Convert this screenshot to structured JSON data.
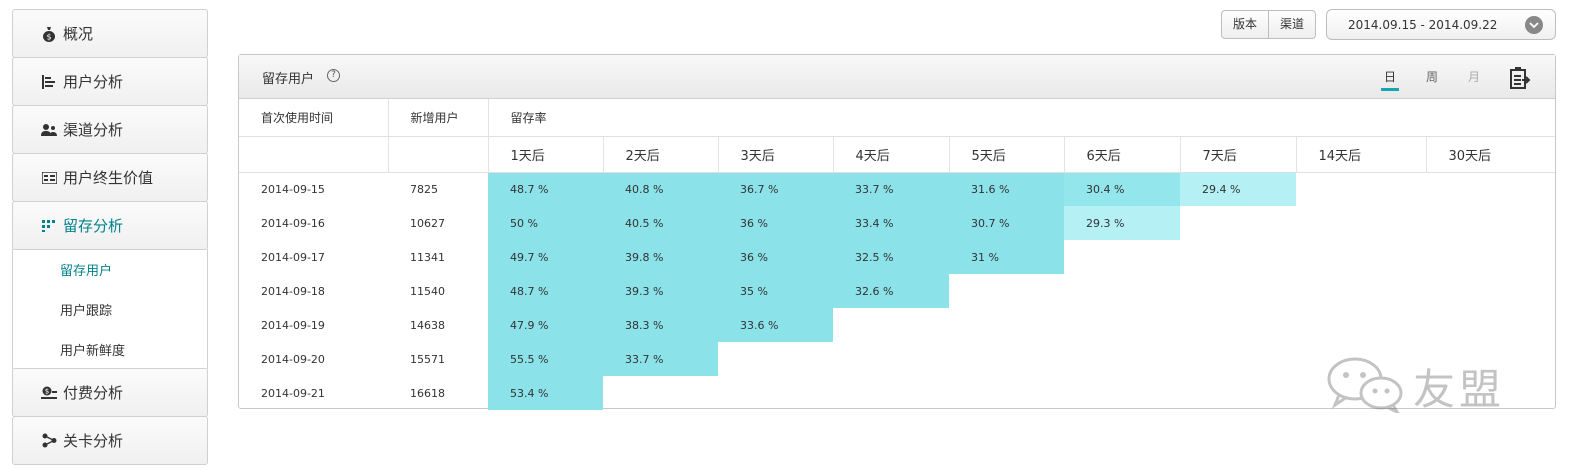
{
  "sidebar": {
    "items": [
      {
        "label": "概况",
        "icon": "money-bag-icon"
      },
      {
        "label": "用户分析",
        "icon": "bar-chart-icon"
      },
      {
        "label": "渠道分析",
        "icon": "users-icon"
      },
      {
        "label": "用户终生价值",
        "icon": "grid-icon"
      },
      {
        "label": "留存分析",
        "icon": "retention-icon"
      },
      {
        "label": "付费分析",
        "icon": "coins-icon"
      },
      {
        "label": "关卡分析",
        "icon": "flow-icon"
      }
    ],
    "sub_items": [
      "留存用户",
      "用户跟踪",
      "用户新鲜度"
    ]
  },
  "toolbar": {
    "version_label": "版本",
    "channel_label": "渠道",
    "date_range": "2014.09.15 - 2014.09.22"
  },
  "panel": {
    "title": "留存用户",
    "help_icon": "?",
    "periods": [
      "日",
      "周",
      "月"
    ]
  },
  "table": {
    "col_first_use": "首次使用时间",
    "col_new_users": "新增用户",
    "col_retention": "留存率",
    "day_headers": [
      "1天后",
      "2天后",
      "3天后",
      "4天后",
      "5天后",
      "6天后",
      "7天后",
      "14天后",
      "30天后"
    ],
    "rows": [
      {
        "date": "2014-09-15",
        "users": "7825",
        "rates": [
          "48.7 %",
          "40.8 %",
          "36.7 %",
          "33.7 %",
          "31.6 %",
          "30.4 %",
          "29.4 %",
          "",
          ""
        ]
      },
      {
        "date": "2014-09-16",
        "users": "10627",
        "rates": [
          "50 %",
          "40.5 %",
          "36 %",
          "33.4 %",
          "30.7 %",
          "29.3 %",
          "",
          "",
          ""
        ]
      },
      {
        "date": "2014-09-17",
        "users": "11341",
        "rates": [
          "49.7 %",
          "39.8 %",
          "36 %",
          "32.5 %",
          "31 %",
          "",
          "",
          "",
          ""
        ]
      },
      {
        "date": "2014-09-18",
        "users": "11540",
        "rates": [
          "48.7 %",
          "39.3 %",
          "35 %",
          "32.6 %",
          "",
          "",
          "",
          "",
          ""
        ]
      },
      {
        "date": "2014-09-19",
        "users": "14638",
        "rates": [
          "47.9 %",
          "38.3 %",
          "33.6 %",
          "",
          "",
          "",
          "",
          "",
          ""
        ]
      },
      {
        "date": "2014-09-20",
        "users": "15571",
        "rates": [
          "55.5 %",
          "33.7 %",
          "",
          "",
          "",
          "",
          "",
          "",
          ""
        ]
      },
      {
        "date": "2014-09-21",
        "users": "16618",
        "rates": [
          "53.4 %",
          "",
          "",
          "",
          "",
          "",
          "",
          "",
          ""
        ]
      }
    ]
  },
  "watermark": {
    "text": "友盟",
    "icon": "wechat-icon"
  },
  "colors": {
    "accent": "#00828a",
    "cell_primary": "#8be2e9",
    "cell_light": "#b4f0f4",
    "period_underline": "#1aa3b0"
  }
}
